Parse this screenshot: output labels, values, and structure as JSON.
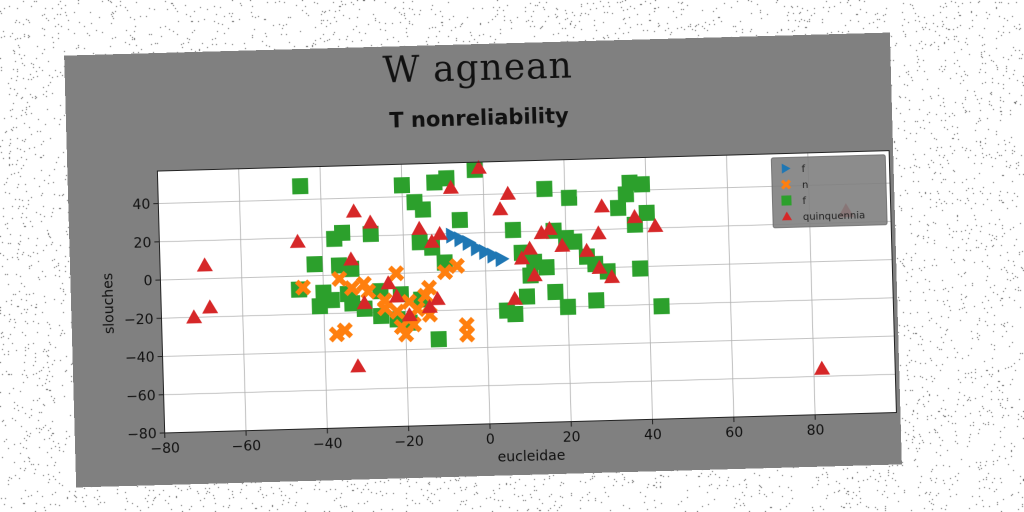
{
  "figure": {
    "suptitle": "W agnean",
    "title": "T nonreliability"
  },
  "chart_data": {
    "type": "scatter",
    "xlabel": "eucleidae",
    "ylabel": "slouches",
    "xlim": [
      -80,
      100
    ],
    "ylim": [
      -80,
      57
    ],
    "xticks": [
      -80,
      -60,
      -40,
      -20,
      0,
      20,
      40,
      60,
      80
    ],
    "yticks": [
      -80,
      -60,
      -40,
      -20,
      0,
      20,
      40
    ],
    "grid": true,
    "legend": "top-right",
    "series": [
      {
        "name": "f",
        "marker": "triangle-right",
        "color": "#1f77b4",
        "points": [
          [
            -8,
            19
          ],
          [
            -6,
            17
          ],
          [
            -4,
            15
          ],
          [
            -2,
            12
          ],
          [
            0,
            10
          ],
          [
            2,
            8
          ],
          [
            4,
            6
          ]
        ]
      },
      {
        "name": "n",
        "marker": "x",
        "color": "#ff7f0e",
        "points": [
          [
            -45,
            -6
          ],
          [
            -36,
            -2
          ],
          [
            -33,
            -7
          ],
          [
            -30,
            -5
          ],
          [
            -29,
            -9
          ],
          [
            -22,
            0
          ],
          [
            -25,
            -18
          ],
          [
            -22,
            -20
          ],
          [
            -19,
            -15
          ],
          [
            -17,
            -19
          ],
          [
            -21,
            -28
          ],
          [
            -20,
            -32
          ],
          [
            -18,
            -27
          ],
          [
            -14,
            -22
          ],
          [
            -15,
            -12
          ],
          [
            -10,
            0
          ],
          [
            -7,
            3
          ],
          [
            -35,
            -29
          ],
          [
            -37,
            -31
          ],
          [
            -5,
            -28
          ],
          [
            -5,
            -33
          ],
          [
            -14,
            -8
          ],
          [
            -25,
            -14
          ]
        ]
      },
      {
        "name": "f",
        "marker": "square",
        "color": "#2ca02c",
        "points": [
          [
            -45,
            47
          ],
          [
            -20,
            46
          ],
          [
            -17,
            37
          ],
          [
            -15,
            33
          ],
          [
            -12,
            47
          ],
          [
            -9,
            49
          ],
          [
            -2,
            53
          ],
          [
            -6,
            27
          ],
          [
            -37,
            19
          ],
          [
            -35,
            22
          ],
          [
            -28,
            21
          ],
          [
            -16,
            16
          ],
          [
            -13,
            13
          ],
          [
            -10,
            5
          ],
          [
            -42,
            6
          ],
          [
            -36,
            5
          ],
          [
            -33,
            3
          ],
          [
            -41,
            -16
          ],
          [
            -38,
            -13
          ],
          [
            -33,
            -15
          ],
          [
            -30,
            -18
          ],
          [
            -26,
            -22
          ],
          [
            -22,
            -24
          ],
          [
            -19,
            -26
          ],
          [
            -12,
            -35
          ],
          [
            -46,
            -7
          ],
          [
            -40,
            -9
          ],
          [
            -34,
            -10
          ],
          [
            -26,
            -9
          ],
          [
            -21,
            -11
          ],
          [
            -16,
            -14
          ],
          [
            7,
            21
          ],
          [
            9,
            9
          ],
          [
            12,
            4
          ],
          [
            15,
            1
          ],
          [
            17,
            20
          ],
          [
            20,
            16
          ],
          [
            22,
            14
          ],
          [
            25,
            6
          ],
          [
            27,
            2
          ],
          [
            30,
            -2
          ],
          [
            33,
            31
          ],
          [
            35,
            38
          ],
          [
            36,
            44
          ],
          [
            39,
            43
          ],
          [
            40,
            28
          ],
          [
            37,
            22
          ],
          [
            38,
            -1
          ],
          [
            43,
            -21
          ],
          [
            20,
            -20
          ],
          [
            27,
            -17
          ],
          [
            17,
            -12
          ],
          [
            10,
            -14
          ],
          [
            5,
            -21
          ],
          [
            7,
            -23
          ],
          [
            21,
            37
          ],
          [
            15,
            42
          ],
          [
            11,
            -3
          ]
        ]
      },
      {
        "name": "quinquennia",
        "marker": "triangle-up",
        "color": "#d62728",
        "points": [
          [
            -72,
            -20
          ],
          [
            -69,
            7
          ],
          [
            -68,
            -15
          ],
          [
            -46,
            18
          ],
          [
            -32,
            -48
          ],
          [
            -32,
            33
          ],
          [
            -28,
            27
          ],
          [
            -24,
            -5
          ],
          [
            -30,
            -15
          ],
          [
            -33,
            8
          ],
          [
            -22,
            -12
          ],
          [
            -19,
            -22
          ],
          [
            -16,
            23
          ],
          [
            -14,
            -18
          ],
          [
            -13,
            16
          ],
          [
            -11,
            20
          ],
          [
            -12,
            -14
          ],
          [
            -8,
            44
          ],
          [
            -1,
            54
          ],
          [
            4,
            32
          ],
          [
            6,
            40
          ],
          [
            7,
            -15
          ],
          [
            9,
            6
          ],
          [
            11,
            11
          ],
          [
            12,
            -3
          ],
          [
            14,
            19
          ],
          [
            19,
            12
          ],
          [
            25,
            9
          ],
          [
            28,
            0
          ],
          [
            31,
            -5
          ],
          [
            28,
            18
          ],
          [
            29,
            32
          ],
          [
            37,
            26
          ],
          [
            42,
            21
          ],
          [
            82,
            -56
          ],
          [
            89,
            26
          ],
          [
            16,
            21
          ]
        ]
      }
    ]
  }
}
